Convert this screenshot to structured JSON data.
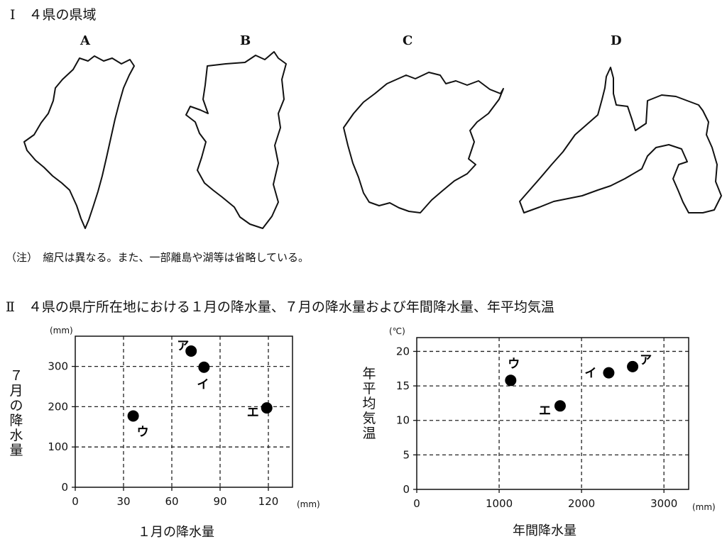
{
  "part1": {
    "title": "Ⅰ　４県の県域",
    "maps": [
      {
        "label": "A"
      },
      {
        "label": "B"
      },
      {
        "label": "C"
      },
      {
        "label": "D"
      }
    ],
    "note": "（注）　縮尺は異なる。また、一部離島や湖等は省略している。"
  },
  "part2": {
    "title": "Ⅱ　４県の県庁所在地における１月の降水量、７月の降水量および年間降水量、年平均気温"
  },
  "chart_data": [
    {
      "type": "scatter",
      "xlabel": "１月の降水量",
      "ylabel": "７月の降水量",
      "x_unit": "(mm)",
      "y_unit": "(mm)",
      "xlim": [
        0,
        135
      ],
      "ylim": [
        0,
        375
      ],
      "xticks": [
        0,
        30,
        60,
        90,
        120
      ],
      "yticks": [
        0,
        100,
        200,
        300
      ],
      "grid": true,
      "points": [
        {
          "label": "ア",
          "x": 72,
          "y": 338
        },
        {
          "label": "イ",
          "x": 80,
          "y": 298
        },
        {
          "label": "ウ",
          "x": 36,
          "y": 177
        },
        {
          "label": "エ",
          "x": 119,
          "y": 197
        }
      ]
    },
    {
      "type": "scatter",
      "xlabel": "年間降水量",
      "ylabel": "年平均気温",
      "x_unit": "(mm)",
      "y_unit": "(℃)",
      "xlim": [
        0,
        3300
      ],
      "ylim": [
        0,
        22
      ],
      "xticks": [
        0,
        1000,
        2000,
        3000
      ],
      "yticks": [
        0,
        5,
        10,
        15,
        20
      ],
      "grid": true,
      "points": [
        {
          "label": "ア",
          "x": 2620,
          "y": 17.8
        },
        {
          "label": "イ",
          "x": 2330,
          "y": 16.9
        },
        {
          "label": "ウ",
          "x": 1140,
          "y": 15.8
        },
        {
          "label": "エ",
          "x": 1740,
          "y": 12.1
        }
      ]
    }
  ]
}
